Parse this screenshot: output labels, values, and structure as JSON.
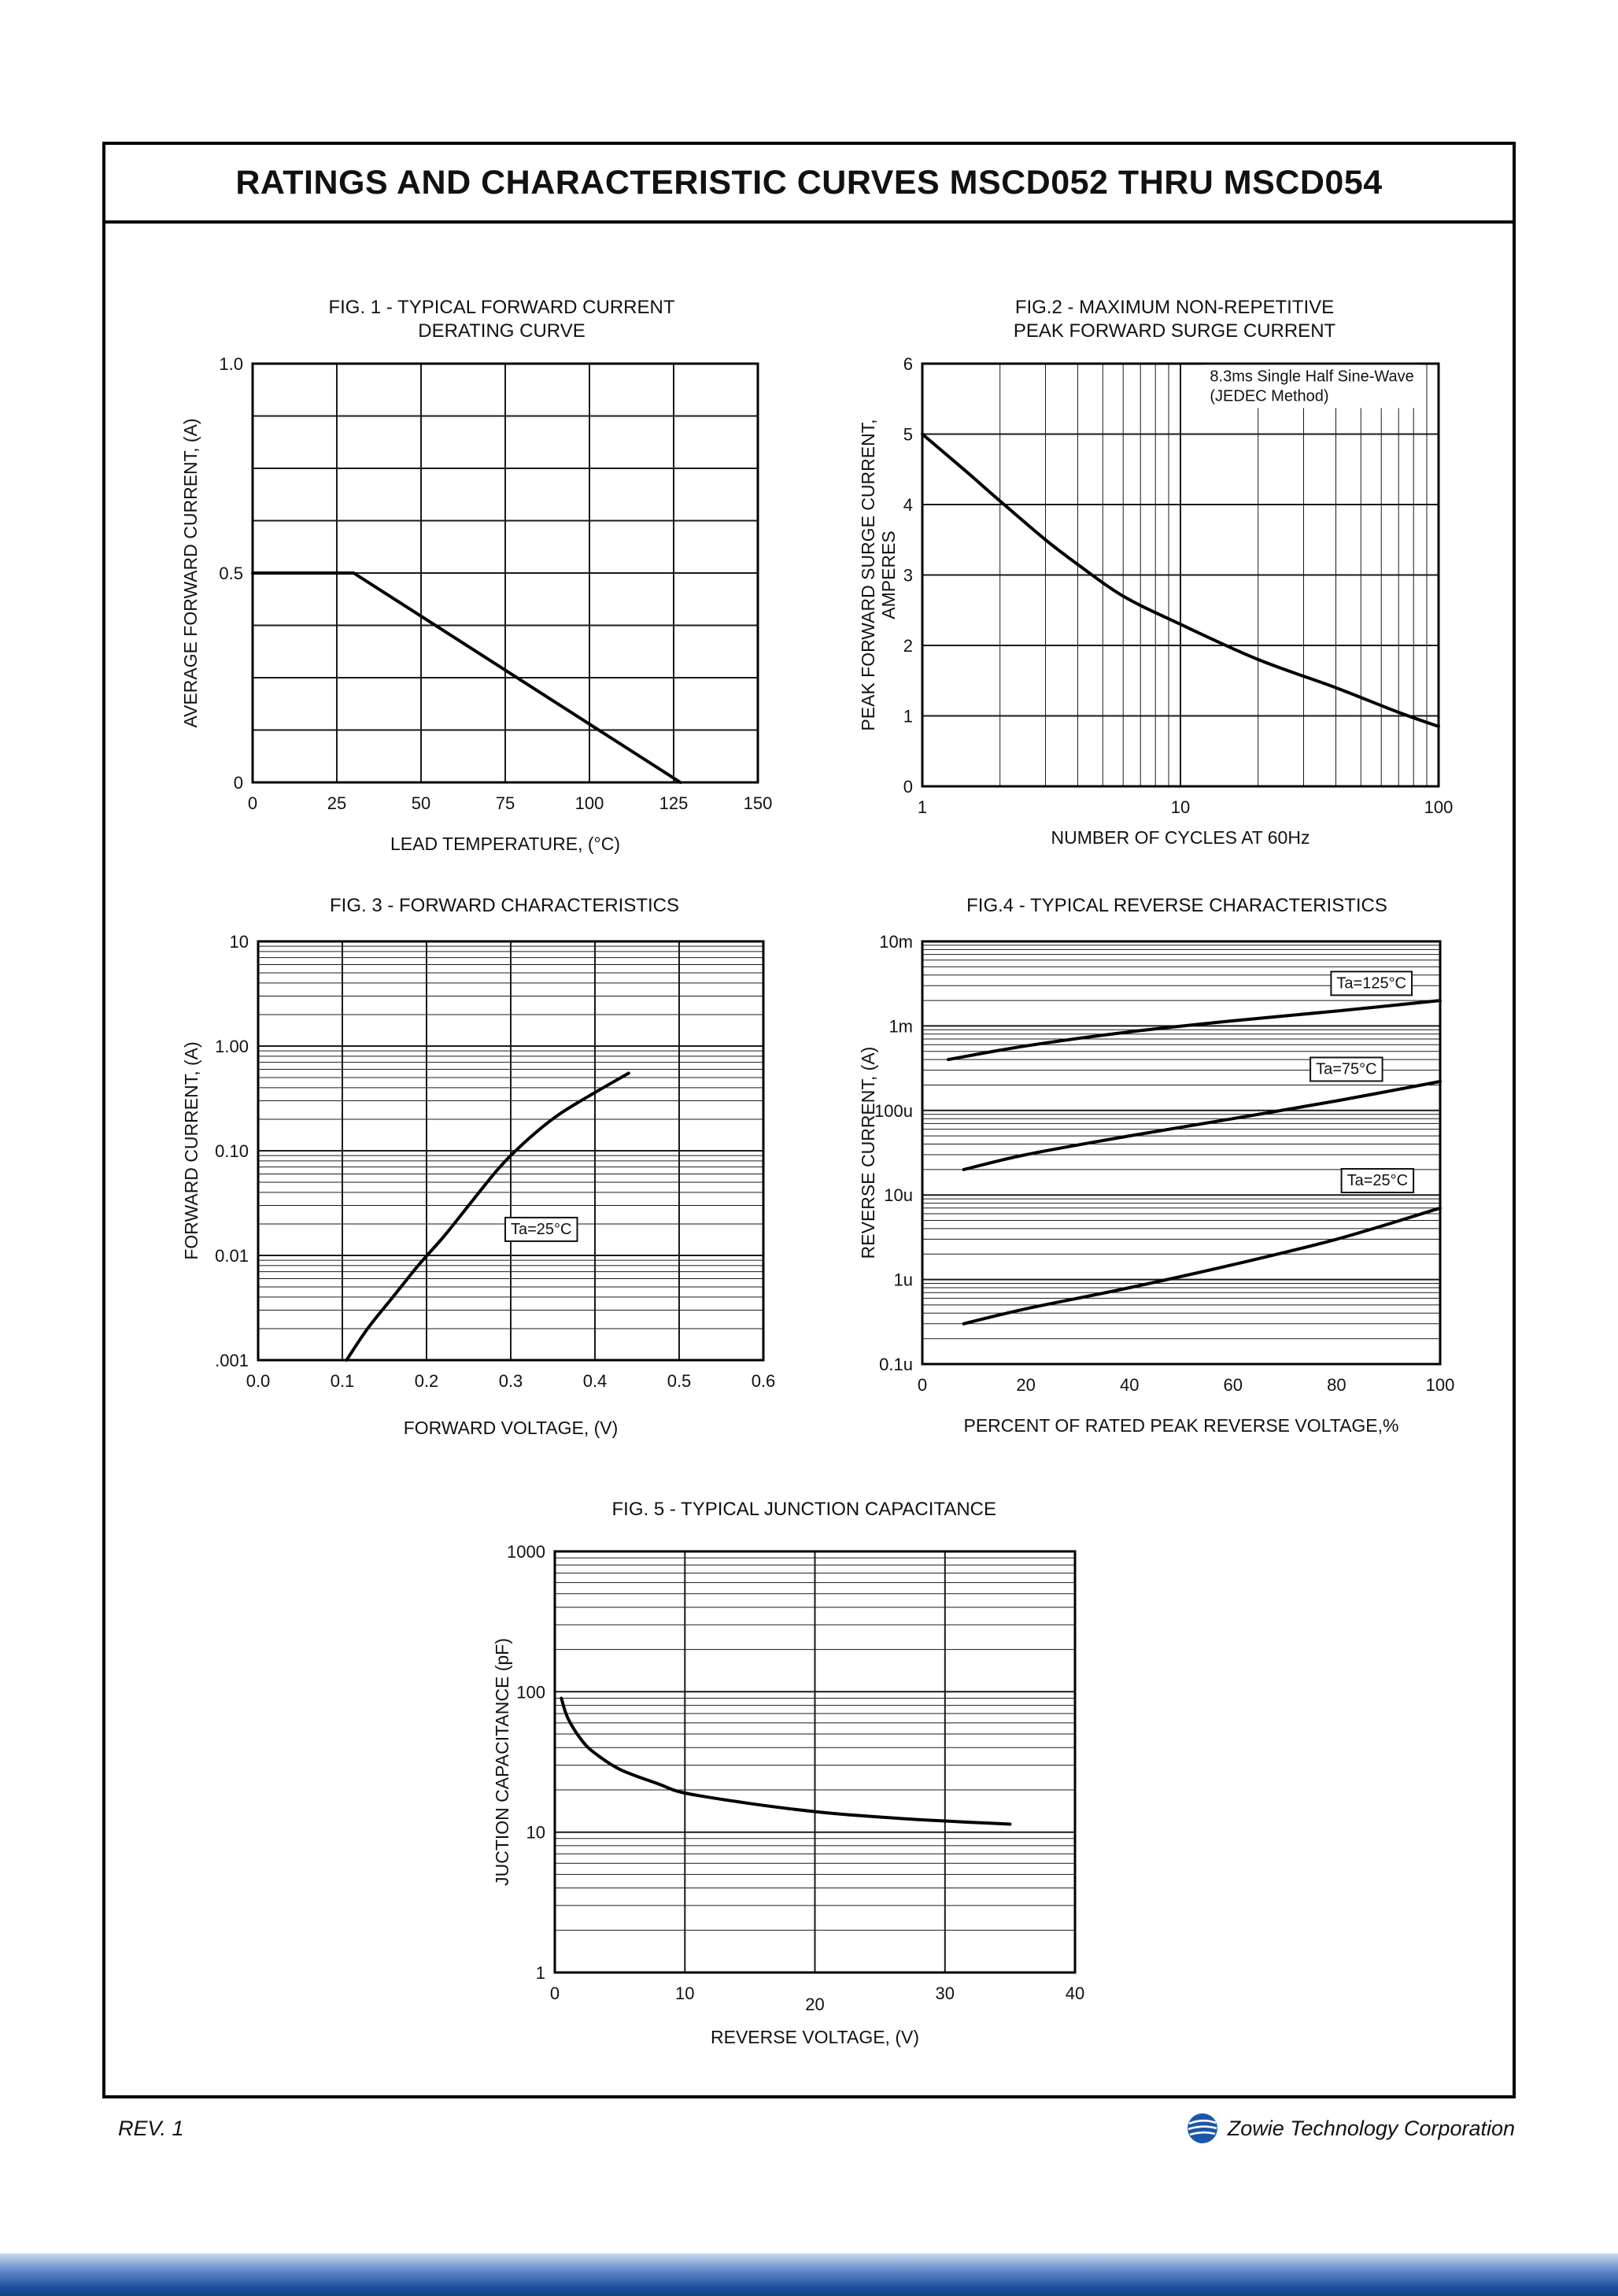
{
  "page": {
    "title": "RATINGS AND CHARACTERISTIC CURVES MSCD052 THRU MSCD054",
    "footer": {
      "rev": "REV. 1",
      "company": "Zowie Technology Corporation"
    },
    "accent_colors": {
      "footer_bar_blue": "#1d4f9e",
      "logo_blue": "#1b56a8"
    }
  },
  "chart_data": [
    {
      "id": "fig1",
      "type": "line",
      "title_lines": [
        "FIG. 1  - TYPICAL FORWARD CURRENT",
        "DERATING CURVE"
      ],
      "xlabel": "LEAD  TEMPERATURE, (°C)",
      "ylabel_lines": [
        "AVERAGE FORWARD CURRENT, (A)"
      ],
      "x": {
        "scale": "linear",
        "min": 0,
        "max": 150,
        "ticks": [
          {
            "v": 0,
            "label": "0"
          },
          {
            "v": 25,
            "label": "25"
          },
          {
            "v": 50,
            "label": "50"
          },
          {
            "v": 75,
            "label": "75"
          },
          {
            "v": 100,
            "label": "100"
          },
          {
            "v": 125,
            "label": "125"
          },
          {
            "v": 150,
            "label": "150"
          }
        ],
        "grid": [
          0,
          25,
          50,
          75,
          100,
          125,
          150
        ]
      },
      "y": {
        "scale": "linear",
        "min": 0,
        "max": 1,
        "ticks": [
          {
            "v": 0,
            "label": "0"
          },
          {
            "v": 0.5,
            "label": "0.5"
          },
          {
            "v": 1,
            "label": "1.0"
          }
        ],
        "grid": [
          0,
          0.125,
          0.25,
          0.375,
          0.5,
          0.625,
          0.75,
          0.875,
          1
        ]
      },
      "series": [
        {
          "name": "derating",
          "smooth": false,
          "points": [
            [
              0,
              0.5
            ],
            [
              30,
              0.5
            ],
            [
              127,
              0
            ]
          ]
        }
      ],
      "annotations": []
    },
    {
      "id": "fig2",
      "type": "line",
      "title_lines": [
        "FIG.2 - MAXIMUM NON-REPETITIVE",
        "PEAK FORWARD SURGE CURRENT"
      ],
      "xlabel": "NUMBER OF CYCLES AT 60Hz",
      "ylabel_lines": [
        "PEAK FORWARD SURGE CURRENT,",
        "AMPERES"
      ],
      "x": {
        "scale": "log",
        "min": 1,
        "max": 100,
        "ticks": [
          {
            "v": 1,
            "label": "1"
          },
          {
            "v": 10,
            "label": "10"
          },
          {
            "v": 100,
            "label": "100"
          }
        ]
      },
      "y": {
        "scale": "linear",
        "min": 0,
        "max": 6,
        "ticks": [
          {
            "v": 0,
            "label": "0"
          },
          {
            "v": 1,
            "label": "1"
          },
          {
            "v": 2,
            "label": "2"
          },
          {
            "v": 3,
            "label": "3"
          },
          {
            "v": 4,
            "label": "4"
          },
          {
            "v": 5,
            "label": "5"
          },
          {
            "v": 6,
            "label": "6"
          }
        ],
        "grid": [
          0,
          1,
          2,
          3,
          4,
          5,
          6
        ]
      },
      "series": [
        {
          "name": "surge",
          "points": [
            [
              1,
              5.0
            ],
            [
              1.5,
              4.45
            ],
            [
              2,
              4.05
            ],
            [
              3,
              3.5
            ],
            [
              4,
              3.15
            ],
            [
              6,
              2.7
            ],
            [
              10,
              2.3
            ],
            [
              20,
              1.8
            ],
            [
              40,
              1.4
            ],
            [
              70,
              1.05
            ],
            [
              100,
              0.85
            ]
          ]
        }
      ],
      "annotations": [
        {
          "x": 13,
          "y": 5.75,
          "lines": [
            "8.3ms Single Half Sine-Wave",
            "(JEDEC Method)"
          ],
          "anchor": "start",
          "boxed": false,
          "bg": true
        }
      ]
    },
    {
      "id": "fig3",
      "type": "line",
      "title_lines": [
        "FIG. 3 -  FORWARD CHARACTERISTICS"
      ],
      "xlabel": "FORWARD  VOLTAGE, (V)",
      "ylabel_lines": [
        "FORWARD  CURRENT, (A)"
      ],
      "x": {
        "scale": "linear",
        "min": 0,
        "max": 0.6,
        "ticks": [
          {
            "v": 0,
            "label": "0.0"
          },
          {
            "v": 0.1,
            "label": "0.1"
          },
          {
            "v": 0.2,
            "label": "0.2"
          },
          {
            "v": 0.3,
            "label": "0.3"
          },
          {
            "v": 0.4,
            "label": "0.4"
          },
          {
            "v": 0.5,
            "label": "0.5"
          },
          {
            "v": 0.6,
            "label": "0.6"
          }
        ],
        "grid": [
          0,
          0.1,
          0.2,
          0.3,
          0.4,
          0.5,
          0.6
        ]
      },
      "y": {
        "scale": "log",
        "min": 0.001,
        "max": 10,
        "ticks": [
          {
            "v": 10,
            "label": "10"
          },
          {
            "v": 1,
            "label": "1.00"
          },
          {
            "v": 0.1,
            "label": "0.10"
          },
          {
            "v": 0.01,
            "label": "0.01"
          },
          {
            "v": 0.001,
            "label": ".001"
          }
        ]
      },
      "series": [
        {
          "name": "forward",
          "points": [
            [
              0.105,
              0.001
            ],
            [
              0.13,
              0.002
            ],
            [
              0.16,
              0.004
            ],
            [
              0.19,
              0.008
            ],
            [
              0.22,
              0.015
            ],
            [
              0.25,
              0.03
            ],
            [
              0.28,
              0.06
            ],
            [
              0.3,
              0.09
            ],
            [
              0.33,
              0.15
            ],
            [
              0.36,
              0.23
            ],
            [
              0.4,
              0.36
            ],
            [
              0.44,
              0.55
            ]
          ]
        }
      ],
      "annotations": [
        {
          "x": 0.3,
          "y": 0.016,
          "lines": [
            "Ta=25°C"
          ],
          "anchor": "start",
          "boxed": true
        }
      ]
    },
    {
      "id": "fig4",
      "type": "line",
      "title_lines": [
        "FIG.4 - TYPICAL REVERSE CHARACTERISTICS"
      ],
      "xlabel": "PERCENT OF RATED PEAK REVERSE VOLTAGE,%",
      "ylabel_lines": [
        "REVERSE CURRENT, (A)"
      ],
      "x": {
        "scale": "linear",
        "min": 0,
        "max": 100,
        "ticks": [
          {
            "v": 0,
            "label": "0"
          },
          {
            "v": 20,
            "label": "20"
          },
          {
            "v": 40,
            "label": "40"
          },
          {
            "v": 60,
            "label": "60"
          },
          {
            "v": 80,
            "label": "80"
          },
          {
            "v": 100,
            "label": "100"
          }
        ],
        "grid": []
      },
      "y": {
        "scale": "log",
        "min": 1e-07,
        "max": 0.01,
        "ticks": [
          {
            "v": 0.01,
            "label": "10m"
          },
          {
            "v": 0.001,
            "label": "1m"
          },
          {
            "v": 0.0001,
            "label": "100u"
          },
          {
            "v": 1e-05,
            "label": "10u"
          },
          {
            "v": 1e-06,
            "label": "1u"
          },
          {
            "v": 1e-07,
            "label": "0.1u"
          }
        ]
      },
      "series": [
        {
          "name": "ta-125c",
          "points": [
            [
              5,
              0.0004
            ],
            [
              20,
              0.00058
            ],
            [
              40,
              0.00085
            ],
            [
              60,
              0.00115
            ],
            [
              80,
              0.0015
            ],
            [
              100,
              0.002
            ]
          ]
        },
        {
          "name": "ta-75c",
          "points": [
            [
              8,
              2e-05
            ],
            [
              20,
              3e-05
            ],
            [
              40,
              5e-05
            ],
            [
              60,
              8e-05
            ],
            [
              80,
              0.00013
            ],
            [
              100,
              0.00022
            ]
          ]
        },
        {
          "name": "ta-25c",
          "points": [
            [
              8,
              3e-07
            ],
            [
              20,
              4.5e-07
            ],
            [
              40,
              8e-07
            ],
            [
              60,
              1.5e-06
            ],
            [
              80,
              3e-06
            ],
            [
              100,
              7e-06
            ]
          ]
        }
      ],
      "annotations": [
        {
          "x": 80,
          "y": 0.0028,
          "lines": [
            "Ta=125°C"
          ],
          "anchor": "start",
          "boxed": true
        },
        {
          "x": 76,
          "y": 0.00027,
          "lines": [
            "Ta=75°C"
          ],
          "anchor": "start",
          "boxed": true
        },
        {
          "x": 82,
          "y": 1.3e-05,
          "lines": [
            "Ta=25°C"
          ],
          "anchor": "start",
          "boxed": true
        }
      ]
    },
    {
      "id": "fig5",
      "type": "line",
      "title_lines": [
        "FIG. 5 - TYPICAL JUNCTION CAPACITANCE"
      ],
      "xlabel": "REVERSE  VOLTAGE, (V)",
      "ylabel_lines": [
        "JUCTION CAPACITANCE  (pF)"
      ],
      "x": {
        "scale": "linear",
        "min": 0,
        "max": 40,
        "ticks": [
          {
            "v": 0,
            "label": "0"
          },
          {
            "v": 10,
            "label": "10"
          },
          {
            "v": 20,
            "label": "20",
            "dy": 14
          },
          {
            "v": 30,
            "label": "30"
          },
          {
            "v": 40,
            "label": "40"
          }
        ],
        "grid": [
          0,
          10,
          20,
          30,
          40
        ]
      },
      "y": {
        "scale": "log",
        "min": 1,
        "max": 1000,
        "ticks": [
          {
            "v": 1000,
            "label": "1000"
          },
          {
            "v": 100,
            "label": "100"
          },
          {
            "v": 10,
            "label": "10"
          },
          {
            "v": 1,
            "label": "1"
          }
        ]
      },
      "series": [
        {
          "name": "capacitance",
          "points": [
            [
              0.5,
              90
            ],
            [
              1,
              65
            ],
            [
              2,
              46
            ],
            [
              3,
              37
            ],
            [
              5,
              28
            ],
            [
              8,
              22
            ],
            [
              10,
              19
            ],
            [
              15,
              16
            ],
            [
              20,
              14
            ],
            [
              25,
              12.8
            ],
            [
              30,
              12
            ],
            [
              35,
              11.4
            ]
          ]
        }
      ],
      "annotations": []
    }
  ]
}
